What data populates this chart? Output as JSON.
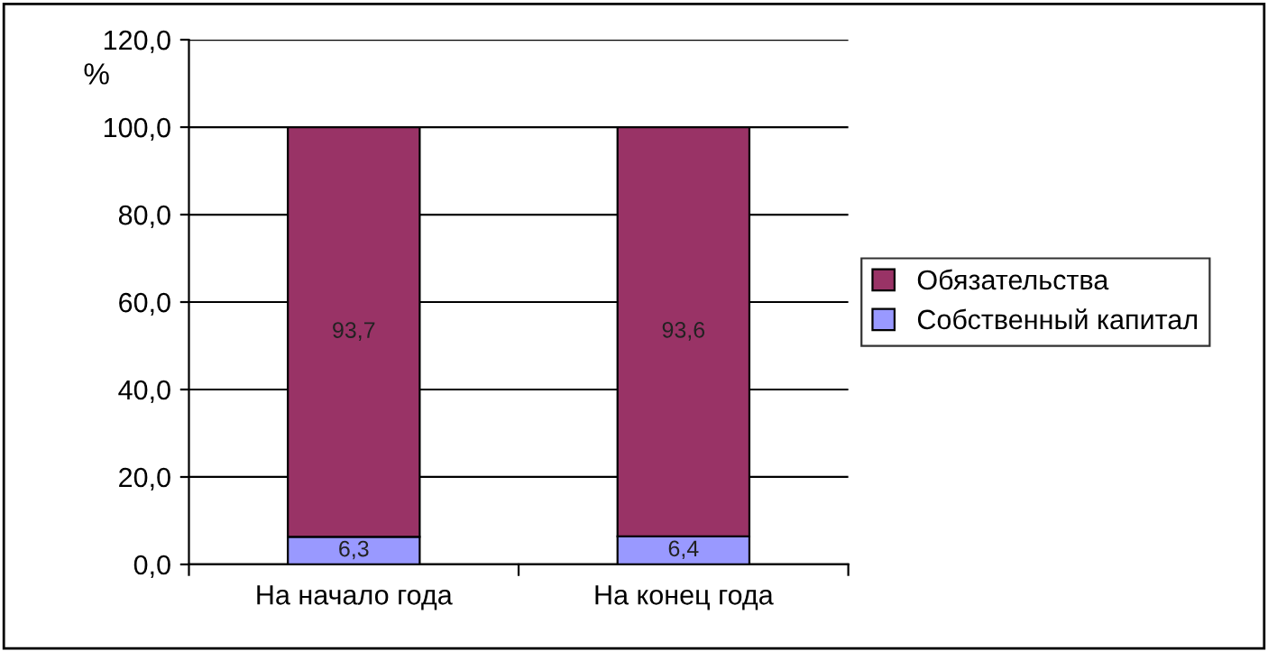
{
  "chart_data": {
    "type": "bar",
    "stacked": true,
    "ylabel": "%",
    "categories": [
      "На начало года",
      "На конец года"
    ],
    "series": [
      {
        "name": "Собственный капитал",
        "color": "#9999ff",
        "values": [
          6.3,
          6.4
        ],
        "value_labels": [
          "6,3",
          "6,4"
        ]
      },
      {
        "name": "Обязательства",
        "color": "#993366",
        "values": [
          93.7,
          93.6
        ],
        "value_labels": [
          "93,7",
          "93,6"
        ]
      }
    ],
    "ylim": [
      0,
      120
    ],
    "yticks": [
      {
        "value": 0,
        "label": "0,0"
      },
      {
        "value": 20,
        "label": "20,0"
      },
      {
        "value": 40,
        "label": "40,0"
      },
      {
        "value": 60,
        "label": "60,0"
      },
      {
        "value": 80,
        "label": "80,0"
      },
      {
        "value": 100,
        "label": "100,0"
      },
      {
        "value": 120,
        "label": "120,0"
      }
    ],
    "grid": "y",
    "legend": "right"
  }
}
